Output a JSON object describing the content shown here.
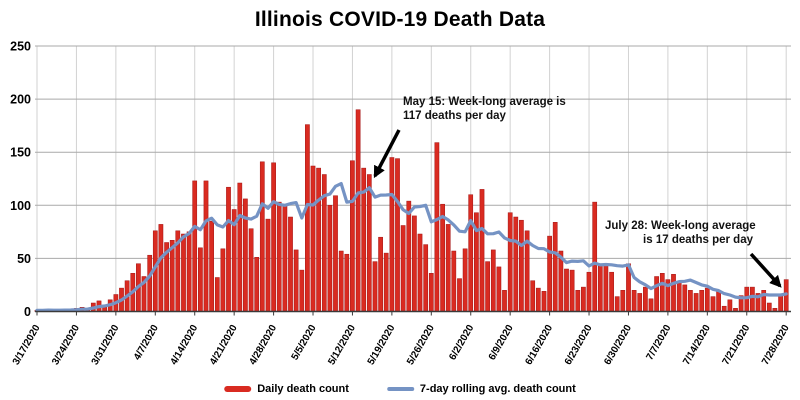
{
  "chart_data": {
    "type": "bar",
    "title": "Illinois COVID-19 Death Data",
    "x_start_date": "3/17/2020",
    "x_end_date": "7/28/2020",
    "x_frequency": "daily",
    "x_tick_labels": [
      "3/17/2020",
      "3/24/2020",
      "3/31/2020",
      "4/7/2020",
      "4/14/2020",
      "4/21/2020",
      "4/28/2020",
      "5/5/2020",
      "5/12/2020",
      "5/19/2020",
      "5/26/2020",
      "6/2/2020",
      "6/9/2020",
      "6/16/2020",
      "6/23/2020",
      "6/30/2020",
      "7/7/2020",
      "7/14/2020",
      "7/21/2020",
      "7/28/2020"
    ],
    "y_ticks": [
      0,
      50,
      100,
      150,
      200,
      250
    ],
    "ylim": [
      0,
      250
    ],
    "grid": "on",
    "legend_position": "bottom center",
    "series": [
      {
        "name": "Daily death count",
        "type": "bar",
        "color": "#d92b21",
        "values": [
          1,
          1,
          2,
          1,
          1,
          2,
          2,
          3,
          4,
          3,
          8,
          10,
          6,
          11,
          16,
          22,
          29,
          36,
          45,
          33,
          53,
          76,
          82,
          65,
          67,
          76,
          73,
          75,
          123,
          60,
          123,
          85,
          32,
          59,
          117,
          96,
          121,
          106,
          78,
          51,
          141,
          87,
          140,
          103,
          100,
          89,
          58,
          39,
          176,
          137,
          135,
          129,
          100,
          109,
          57,
          54,
          142,
          190,
          135,
          129,
          47,
          70,
          55,
          145,
          144,
          81,
          104,
          90,
          73,
          63,
          36,
          159,
          101,
          82,
          57,
          31,
          59,
          110,
          93,
          115,
          47,
          58,
          42,
          20,
          93,
          89,
          86,
          76,
          29,
          22,
          19,
          71,
          84,
          57,
          40,
          39,
          20,
          23,
          37,
          103,
          45,
          43,
          37,
          14,
          20,
          45,
          20,
          17,
          23,
          12,
          33,
          36,
          30,
          35,
          28,
          25,
          20,
          17,
          20,
          22,
          14,
          20,
          5,
          11,
          3,
          15,
          23,
          23,
          17,
          20,
          8,
          3,
          15,
          30
        ]
      },
      {
        "name": "7-day rolling avg. death count",
        "type": "line",
        "color": "#7593c4",
        "derivation": "7-day trailing mean of Daily death count",
        "labeled_points": [
          {
            "date": "5/15/2020",
            "value": 117
          },
          {
            "date": "7/28/2020",
            "value": 17
          }
        ]
      }
    ],
    "annotations": [
      {
        "line1": "May 15: Week-long average is",
        "line2": "117 deaths per day"
      },
      {
        "line1": "July 28: Week-long average",
        "line2": "is 17 deaths per day"
      }
    ]
  },
  "colors": {
    "bar_fill": "#d92b21",
    "bar_stroke": "#a31212",
    "line": "#7593c4",
    "h_gridline": "#a9a9a9",
    "v_gridline": "#d2d2d2",
    "axis": "#3a3a3a",
    "arrow": "#000000"
  }
}
